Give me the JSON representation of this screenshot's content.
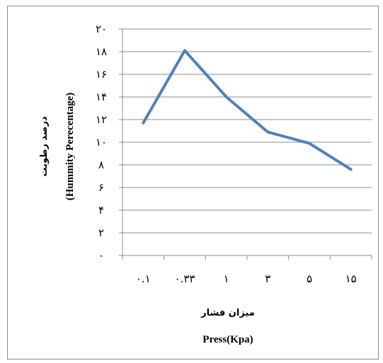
{
  "chart_data": {
    "type": "line",
    "categories": [
      "۰.۱",
      "۰.۳۳",
      "۱",
      "۳",
      "۵",
      "۱۵"
    ],
    "series": [
      {
        "values": [
          11.7,
          18.1,
          14.0,
          10.9,
          9.9,
          7.6
        ],
        "color": "#4f81bd"
      }
    ],
    "y_ticks": [
      "۰",
      "۲",
      "۴",
      "۶",
      "۸",
      "۱۰",
      "۱۲",
      "۱۴",
      "۱۶",
      "۱۸",
      "۲۰"
    ],
    "ylim": [
      0,
      20
    ],
    "ystep": 2,
    "xlabel_fa": "میزان فشار",
    "xlabel_en": "Press(Kpa)",
    "ylabel_fa": "درصد رطوبت",
    "ylabel_en": "(Hummity Perecentage)",
    "grid": true,
    "legend": "none",
    "gridline_color": "#8c8c8c"
  }
}
